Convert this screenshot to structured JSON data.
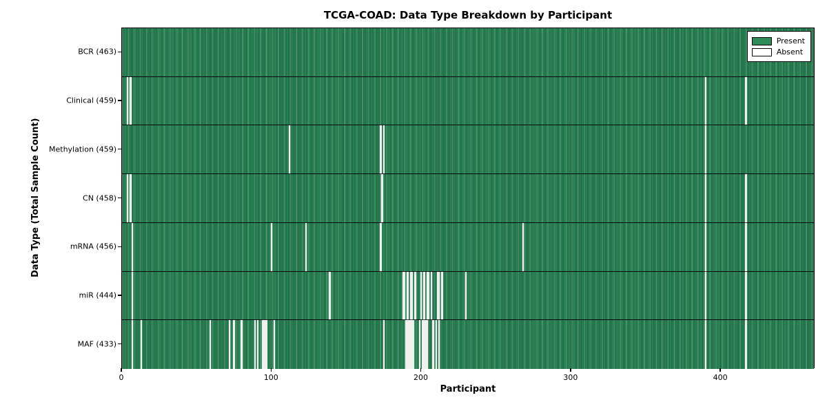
{
  "title": "TCGA-COAD: Data Type Breakdown by Participant",
  "xlabel": "Participant",
  "ylabel": "Data Type (Total Sample Count)",
  "legend": {
    "present_label": "Present",
    "absent_label": "Absent",
    "position": "upper right"
  },
  "colors": {
    "present_green": "#2e8a57",
    "present_green_dark": "#1a6240",
    "absent_white": "#eff1ec",
    "axis": "#000000",
    "background": "#ffffff"
  },
  "chart_data": {
    "type": "heatmap",
    "title": "TCGA-COAD: Data Type Breakdown by Participant",
    "xlabel": "Participant",
    "ylabel": "Data Type (Total Sample Count)",
    "x_axis": {
      "range": [
        0,
        463
      ],
      "ticks": [
        0,
        100,
        200,
        300,
        400
      ]
    },
    "n_participants": 463,
    "grid": false,
    "legend_entries": [
      "Present",
      "Absent"
    ],
    "rows": [
      {
        "label": "BCR (463)",
        "data_type": "BCR",
        "total": 463,
        "absent_participants": []
      },
      {
        "label": "Clinical (459)",
        "data_type": "Clinical",
        "total": 459,
        "absent_participants": [
          4,
          6,
          390,
          417
        ]
      },
      {
        "label": "Methylation (459)",
        "data_type": "Methylation",
        "total": 459,
        "absent_participants": [
          112,
          173,
          175,
          390
        ]
      },
      {
        "label": "CN (458)",
        "data_type": "CN",
        "total": 458,
        "absent_participants": [
          4,
          6,
          174,
          390,
          417
        ]
      },
      {
        "label": "mRNA (456)",
        "data_type": "mRNA",
        "total": 456,
        "absent_participants": [
          7,
          100,
          123,
          173,
          268,
          390,
          417
        ]
      },
      {
        "label": "miR (444)",
        "data_type": "miR",
        "total": 444,
        "absent_participants": [
          7,
          139,
          188,
          189,
          191,
          193,
          194,
          196,
          200,
          202,
          204,
          205,
          207,
          211,
          212,
          214,
          230,
          390,
          417
        ]
      },
      {
        "label": "MAF (433)",
        "data_type": "MAF",
        "total": 433,
        "absent_participants": [
          7,
          13,
          59,
          72,
          75,
          80,
          89,
          91,
          94,
          95,
          96,
          97,
          102,
          175,
          190,
          191,
          192,
          193,
          194,
          195,
          199,
          201,
          202,
          203,
          204,
          208,
          210,
          212,
          390,
          417
        ]
      }
    ]
  }
}
